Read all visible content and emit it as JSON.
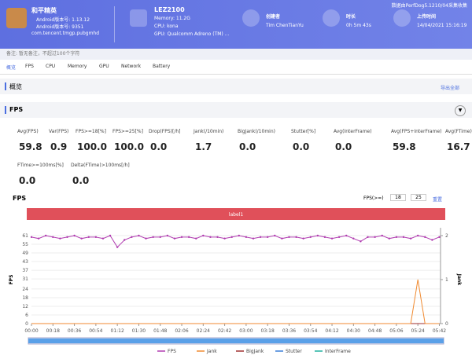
{
  "header": {
    "app": {
      "name": "和平精英",
      "version": "Android版本号: 1.13.12",
      "build": "Android版本号: 9351",
      "package": "com.tencent.tmgp.pubgmhd"
    },
    "device": {
      "model": "LEZ2100",
      "memory": "Memory: 11.2G",
      "cpu": "CPU: kona",
      "gpu": "GPU: Qualcomm Adreno (TM) ..."
    },
    "creator": {
      "label": "创建者",
      "value": "Tim ChenTianYu"
    },
    "duration": {
      "label": "时长",
      "value": "0h 5m 43s"
    },
    "upload": {
      "label": "上传时间",
      "value": "14/04/2021 15:16:19"
    },
    "notice": "数据由PerfDog5.1210/04采集收集"
  },
  "note": "备注: 暂无备注，不超过100个字符",
  "tabs": [
    "概览",
    "FPS",
    "CPU",
    "Memory",
    "GPU",
    "Network",
    "Battery"
  ],
  "overview": {
    "title": "概览",
    "export": "导出全部"
  },
  "fps_section": {
    "title": "FPS",
    "metrics": [
      {
        "label": "Avg(FPS)",
        "value": "59.8"
      },
      {
        "label": "Var(FPS)",
        "value": "0.9"
      },
      {
        "label": "FPS>=18[%]",
        "value": "100.0"
      },
      {
        "label": "FPS>=25[%]",
        "value": "100.0"
      },
      {
        "label": "Drop(FPS)[/h]",
        "value": "0.0"
      },
      {
        "label": "Jank(/10min)",
        "value": "1.7"
      },
      {
        "label": "BigJank(/10min)",
        "value": "0.0"
      },
      {
        "label": "Stutter[%]",
        "value": "0.0"
      },
      {
        "label": "Avg(InterFrame)",
        "value": "0.0"
      },
      {
        "label": "Avg(FPS+InterFrame)",
        "value": "59.8"
      },
      {
        "label": "Avg(FTime)[ms]",
        "value": "16.7"
      }
    ],
    "metrics2": [
      {
        "label": "FTime>=100ms[%]",
        "value": "0.0"
      },
      {
        "label": "Delta(FTime)>100ms[/h]",
        "value": "0.0"
      }
    ]
  },
  "chart": {
    "type": "line",
    "title": "FPS",
    "threshold_label": "FPS(>=)",
    "thresholds": [
      18,
      25
    ],
    "reset": "重置",
    "label_bar": "label1",
    "y_label": "FPS",
    "y2_label": "Jank",
    "xlim": [
      0,
      343
    ],
    "ylim": [
      0,
      61
    ],
    "y2lim": [
      0,
      2
    ],
    "yticks": [
      0,
      6,
      12,
      18,
      24,
      31,
      37,
      43,
      49,
      55,
      61
    ],
    "y2ticks": [
      0,
      1,
      2
    ],
    "xticks": [
      {
        "value": 0,
        "label": "00:00"
      },
      {
        "value": 18,
        "label": "00:18"
      },
      {
        "value": 36,
        "label": "00:36"
      },
      {
        "value": 54,
        "label": "00:54"
      },
      {
        "value": 72,
        "label": "01:12"
      },
      {
        "value": 90,
        "label": "01:30"
      },
      {
        "value": 108,
        "label": "01:48"
      },
      {
        "value": 126,
        "label": "02:06"
      },
      {
        "value": 144,
        "label": "02:24"
      },
      {
        "value": 162,
        "label": "02:42"
      },
      {
        "value": 180,
        "label": "03:00"
      },
      {
        "value": 198,
        "label": "03:18"
      },
      {
        "value": 216,
        "label": "03:36"
      },
      {
        "value": 234,
        "label": "03:54"
      },
      {
        "value": 252,
        "label": "04:12"
      },
      {
        "value": 270,
        "label": "04:30"
      },
      {
        "value": 288,
        "label": "04:48"
      },
      {
        "value": 306,
        "label": "05:06"
      },
      {
        "value": 324,
        "label": "05:24"
      },
      {
        "value": 342,
        "label": "05:42"
      }
    ],
    "series": [
      {
        "name": "FPS",
        "color": "#b03cb0",
        "x": [
          0,
          6,
          12,
          18,
          24,
          30,
          36,
          42,
          48,
          54,
          60,
          66,
          72,
          78,
          84,
          90,
          96,
          102,
          108,
          114,
          120,
          126,
          132,
          138,
          144,
          150,
          156,
          162,
          168,
          174,
          180,
          186,
          192,
          198,
          204,
          210,
          216,
          222,
          228,
          234,
          240,
          246,
          252,
          258,
          264,
          270,
          276,
          282,
          288,
          294,
          300,
          306,
          312,
          318,
          324,
          330,
          336,
          342
        ],
        "values": [
          60,
          59,
          61,
          60,
          59,
          60,
          61,
          59,
          60,
          60,
          59,
          61,
          53,
          58,
          60,
          61,
          59,
          60,
          60,
          61,
          59,
          60,
          60,
          59,
          61,
          60,
          60,
          59,
          60,
          61,
          60,
          59,
          60,
          60,
          61,
          59,
          60,
          60,
          59,
          60,
          61,
          60,
          59,
          60,
          61,
          59,
          57,
          60,
          60,
          61,
          59,
          60,
          60,
          59,
          61,
          60,
          58,
          60
        ]
      },
      {
        "name": "Jank",
        "color": "#f08a30",
        "axis": "y2",
        "x": [
          0,
          318,
          324,
          330,
          342
        ],
        "values": [
          0,
          0,
          1,
          0,
          0
        ]
      },
      {
        "name": "BigJank",
        "color": "#a03030",
        "axis": "y2",
        "x": [
          0,
          342
        ],
        "values": [
          0,
          0
        ]
      },
      {
        "name": "Stutter",
        "color": "#3a7fd8",
        "x": [
          0,
          342
        ],
        "values": [
          0,
          0
        ]
      },
      {
        "name": "InterFrame",
        "color": "#20b0a0",
        "x": [
          0,
          342
        ],
        "values": [
          0,
          0
        ]
      }
    ]
  }
}
